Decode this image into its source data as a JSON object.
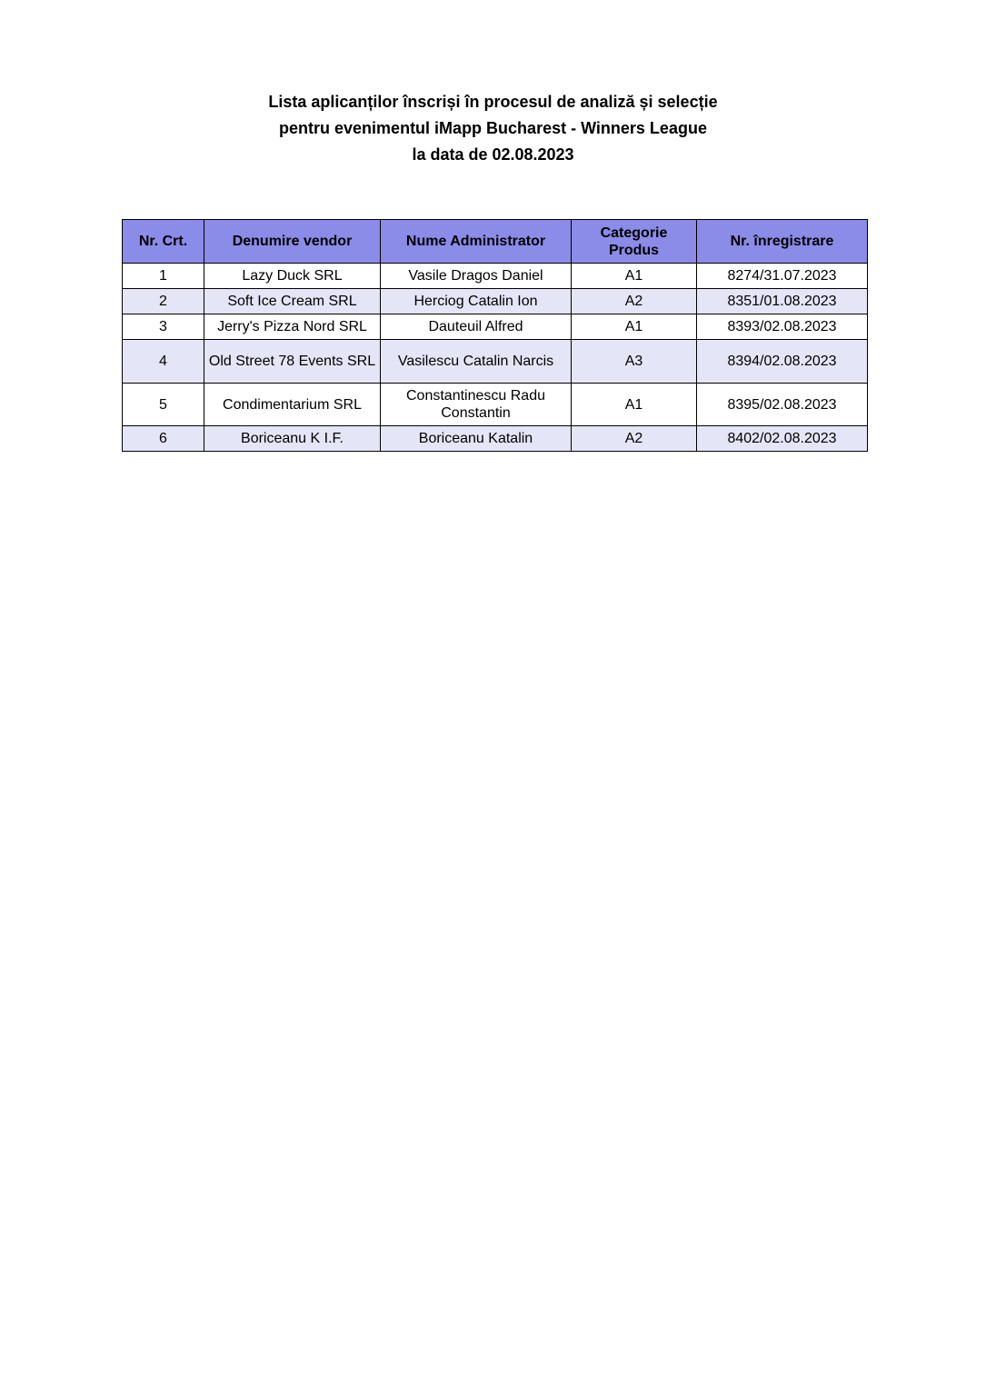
{
  "document": {
    "title_lines": [
      "Lista aplicanților înscriși în procesul de analiză și selecție",
      "pentru evenimentul iMapp Bucharest - Winners League",
      "la data de 02.08.2023"
    ],
    "table": {
      "headers": [
        "Nr. Crt.",
        "Denumire vendor",
        "Nume Administrator",
        "Categorie Produs",
        "Nr. înregistrare"
      ],
      "header_color": "#8b8be8",
      "alt_row_color": "#e5e5f8",
      "rows": [
        [
          "1",
          "Lazy Duck SRL",
          "Vasile Dragos Daniel",
          "A1",
          "8274/31.07.2023"
        ],
        [
          "2",
          "Soft Ice Cream SRL",
          "Herciog Catalin Ion",
          "A2",
          "8351/01.08.2023"
        ],
        [
          "3",
          "Jerry's Pizza Nord SRL",
          "Dauteuil Alfred",
          "A1",
          "8393/02.08.2023"
        ],
        [
          "4",
          "Old Street 78 Events SRL",
          "Vasilescu Catalin Narcis",
          "A3",
          "8394/02.08.2023"
        ],
        [
          "5",
          "Condimentarium SRL",
          "Constantinescu Radu Constantin",
          "A1",
          "8395/02.08.2023"
        ],
        [
          "6",
          "Boriceanu K I.F.",
          "Boriceanu Katalin",
          "A2",
          "8402/02.08.2023"
        ]
      ]
    }
  }
}
